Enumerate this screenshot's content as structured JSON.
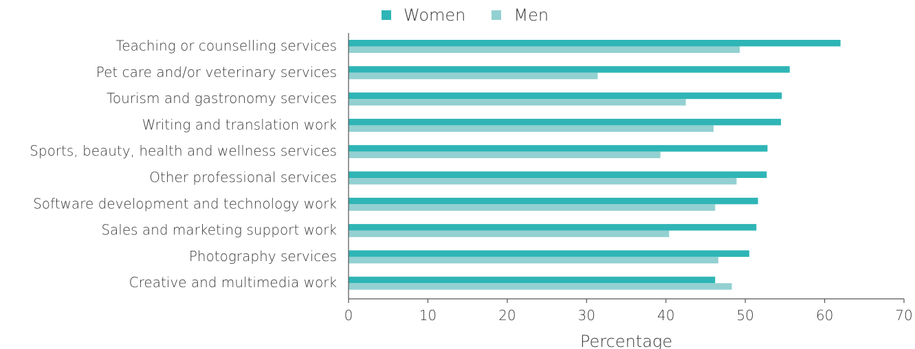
{
  "chart_data": {
    "type": "bar",
    "orientation": "horizontal",
    "categories": [
      "Teaching or counselling services",
      "Pet care and/or veterinary services",
      "Tourism and gastronomy services",
      "Writing and translation work",
      "Sports, beauty, health and wellness services",
      "Other professional services",
      "Software development and technology work",
      "Sales and marketing support work",
      "Photography services",
      "Creative and multimedia work"
    ],
    "series": [
      {
        "name": "Women",
        "color": "#2fb5b6",
        "values": [
          62.0,
          55.6,
          54.6,
          54.5,
          52.8,
          52.7,
          51.6,
          51.4,
          50.5,
          46.2
        ]
      },
      {
        "name": "Men",
        "color": "#93d0d1",
        "values": [
          49.3,
          31.4,
          42.5,
          46.0,
          39.3,
          48.9,
          46.2,
          40.4,
          46.6,
          48.3
        ]
      }
    ],
    "title": "",
    "xlabel": "Percentage",
    "ylabel": "",
    "xlim": [
      0,
      70
    ],
    "xticks": [
      "0",
      "10",
      "20",
      "30",
      "40",
      "50",
      "60",
      "70"
    ],
    "grid": false,
    "legend": "top"
  }
}
